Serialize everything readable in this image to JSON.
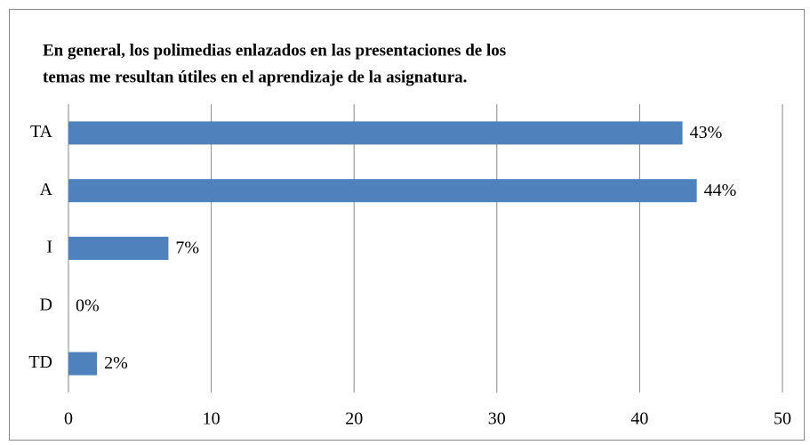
{
  "chart_data": {
    "type": "bar",
    "orientation": "horizontal",
    "title": [
      "En general, los polimedias enlazados en las presentaciones de los",
      "temas me resultan útiles en el aprendizaje de la asignatura."
    ],
    "categories": [
      "TA",
      "A",
      "I",
      "D",
      "TD"
    ],
    "values": [
      43,
      44,
      7,
      0,
      2
    ],
    "value_labels": [
      "43%",
      "44%",
      "7%",
      "0%",
      "2%"
    ],
    "color": "#4f81bd",
    "xlim": [
      0,
      50
    ],
    "xticks": [
      0,
      10,
      20,
      30,
      40,
      50
    ],
    "grid": true
  }
}
